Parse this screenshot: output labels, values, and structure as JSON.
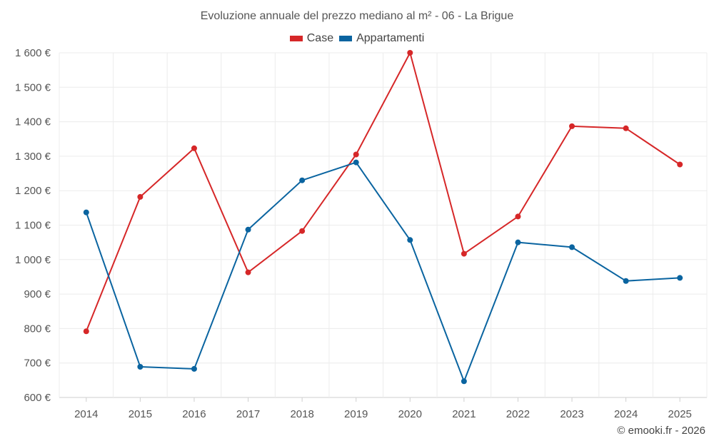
{
  "chart_data": {
    "type": "line",
    "title": "Evoluzione annuale del prezzo mediano al m² - 06 - La Brigue",
    "categories": [
      "2014",
      "2015",
      "2016",
      "2017",
      "2018",
      "2019",
      "2020",
      "2021",
      "2022",
      "2023",
      "2024",
      "2025"
    ],
    "series": [
      {
        "name": "Case",
        "color": "#d62728",
        "values": [
          792,
          1182,
          1323,
          963,
          1083,
          1305,
          1600,
          1017,
          1125,
          1387,
          1381,
          1276
        ]
      },
      {
        "name": "Appartamenti",
        "color": "#0a64a0",
        "values": [
          1137,
          689,
          683,
          1087,
          1230,
          1282,
          1057,
          647,
          1050,
          1036,
          938,
          947
        ]
      }
    ],
    "ylim": [
      600,
      1600
    ],
    "yticks": [
      600,
      700,
      800,
      900,
      1000,
      1100,
      1200,
      1300,
      1400,
      1500,
      1600
    ],
    "ytick_labels": [
      "600 €",
      "700 €",
      "800 €",
      "900 €",
      "1 000 €",
      "1 100 €",
      "1 200 €",
      "1 300 €",
      "1 400 €",
      "1 500 €",
      "1 600 €"
    ],
    "xlabel": "",
    "ylabel": "",
    "grid": true,
    "legend_position": "top-center"
  },
  "footer": {
    "copyright": "© emooki.fr - 2026"
  }
}
